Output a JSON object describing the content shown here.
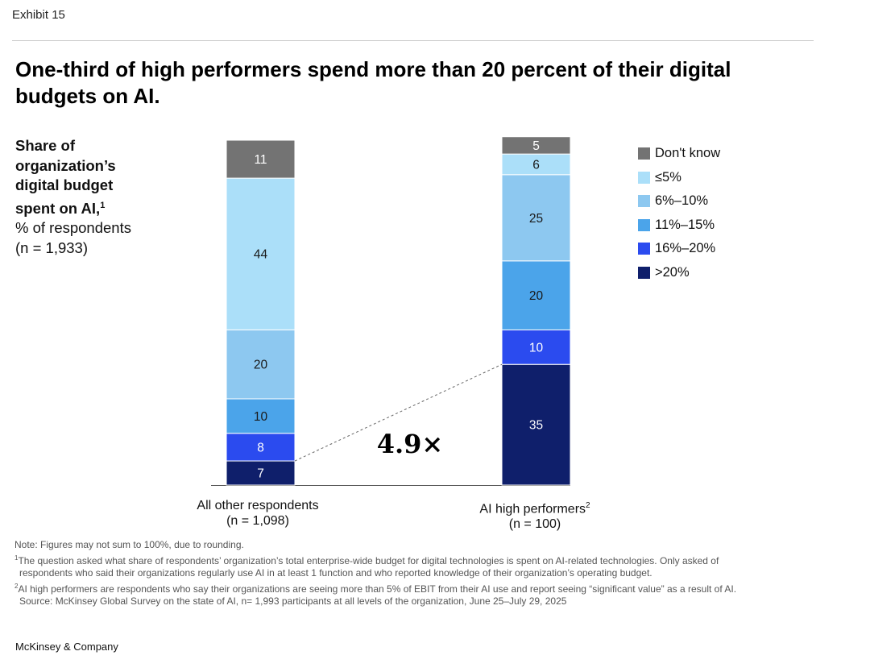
{
  "exhibit": "Exhibit 15",
  "title": "One-third of high performers spend more than 20 percent of their digital budgets on AI.",
  "side": {
    "bold_lines": [
      "Share of",
      "organization’s",
      "digital budget"
    ],
    "bold_last": "spent on AI,",
    "bold_last_sup": "1",
    "normal_lines": [
      "% of respondents",
      "(n = 1,933)"
    ]
  },
  "chart_data": {
    "type": "bar",
    "stacked": true,
    "orientation": "vertical",
    "categories": [
      "All other respondents",
      "AI high performers"
    ],
    "category_notes": [
      "(n = 1,098)",
      "(n = 100)"
    ],
    "category_sups": [
      "",
      "2"
    ],
    "series": [
      {
        "name": ">20%",
        "color": "#0f1f6b",
        "values": [
          7,
          35
        ]
      },
      {
        "name": "16%–20%",
        "color": "#2b4bef",
        "values": [
          8,
          10
        ]
      },
      {
        "name": "11%–15%",
        "color": "#4ba4ea",
        "values": [
          10,
          20
        ]
      },
      {
        "name": "6%–10%",
        "color": "#8dc8f0",
        "values": [
          20,
          25
        ]
      },
      {
        "name": "≤5%",
        "color": "#abdff9",
        "values": [
          44,
          6
        ]
      },
      {
        "name": "Don't know",
        "color": "#737373",
        "values": [
          11,
          5
        ]
      }
    ],
    "legend_order": [
      "Don't know",
      "≤5%",
      "6%–10%",
      "11%–15%",
      "16%–20%",
      ">20%"
    ],
    "annotation": "4.9×",
    "ylim": [
      0,
      100
    ]
  },
  "notes": [
    {
      "sup": "",
      "text": "Note: Figures may not sum to 100%, due to rounding."
    },
    {
      "sup": "1",
      "text": "The question asked what share of respondents’ organization’s total enterprise-wide budget for digital technologies is spent on AI-related technologies. Only asked of"
    },
    {
      "sup": "",
      "text": "respondents who said their organizations regularly use AI in at least 1 function and who reported knowledge of their organization’s operating budget.",
      "indent": true
    },
    {
      "sup": "2",
      "text": "AI high performers are respondents who say their organizations are seeing more than 5% of EBIT from their AI use and report seeing “significant value” as a result of AI."
    },
    {
      "sup": "",
      "text": "Source: McKinsey Global Survey on the state of AI, n= 1,993 participants at all levels of the organization, June 25–July 29, 2025",
      "indent": true
    }
  ],
  "brand": "McKinsey & Company"
}
